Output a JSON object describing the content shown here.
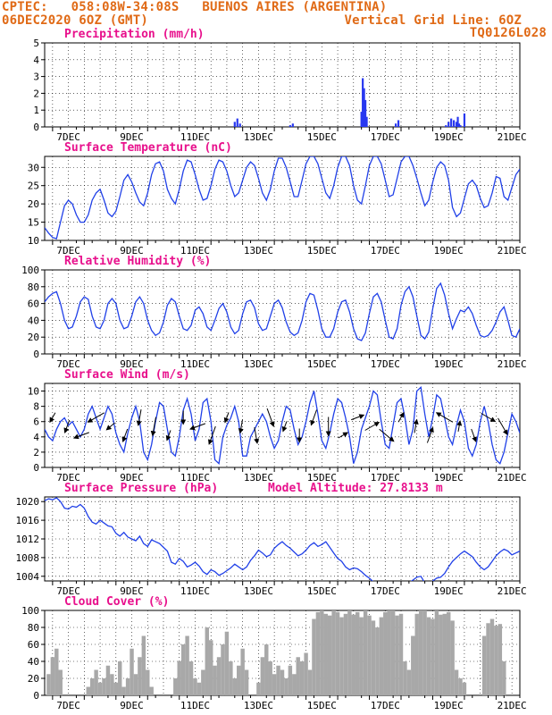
{
  "header": {
    "left1": "CPTEC:   058:08W-34:08S   BUENOS AIRES (ARGENTINA)",
    "left2": "06DEC2020 6OZ (GMT)",
    "right2": "Vertical Grid Line: 6OZ",
    "right3": "TQ0126L028"
  },
  "colors": {
    "title": "#e8108c",
    "series": "#2040e8",
    "bars": "#2838f0",
    "cloud": "#a8a8a8",
    "header": "#e06a16",
    "grid": "#000000"
  },
  "x_ticks": [
    "7DEC",
    "9DEC",
    "11DEC",
    "13DEC",
    "15DEC",
    "17DEC",
    "19DEC",
    "21DEC"
  ],
  "chart_data": [
    {
      "type": "bar",
      "title": "Precipitation (mm/h)",
      "ylim": [
        0,
        5
      ],
      "yticks": [
        "0",
        "1",
        "2",
        "3",
        "4",
        "5"
      ],
      "x_label_note": "hours since 06DEC2020 12Z",
      "x": [
        144,
        146,
        148,
        186,
        188,
        240,
        241,
        242,
        243,
        244,
        266,
        268,
        304,
        306,
        308,
        310,
        312,
        313,
        314,
        315,
        318
      ],
      "values": [
        0.3,
        0.5,
        0.2,
        0.1,
        0.2,
        0.9,
        2.9,
        2.3,
        1.6,
        0.6,
        0.2,
        0.4,
        0.1,
        0.3,
        0.5,
        0.4,
        0.3,
        0.6,
        0.2,
        0.1,
        0.8
      ]
    },
    {
      "type": "line",
      "title": "Surface Temperature (nC)",
      "ylim": [
        10,
        33
      ],
      "yticks": [
        "10",
        "15",
        "20",
        "25",
        "30"
      ],
      "x": [
        0,
        3,
        6,
        9,
        12,
        15,
        18,
        21,
        24,
        27,
        30,
        33,
        36,
        39,
        42,
        45,
        48,
        51,
        54,
        57,
        60,
        63,
        66,
        69,
        72,
        75,
        78,
        81,
        84,
        87,
        90,
        93,
        96,
        99,
        102,
        105,
        108,
        111,
        114,
        117,
        120,
        123,
        126,
        129,
        132,
        135,
        138,
        141,
        144,
        147,
        150,
        153,
        156,
        159,
        162,
        165,
        168,
        171,
        174,
        177,
        180,
        183,
        186,
        189,
        192,
        195,
        198,
        201,
        204,
        207,
        210,
        213,
        216,
        219,
        222,
        225,
        228,
        231,
        234,
        237,
        240,
        243,
        246,
        249,
        252,
        255,
        258,
        261,
        264,
        267,
        270,
        273,
        276,
        279,
        282,
        285,
        288,
        291,
        294,
        297,
        300,
        303,
        306,
        309,
        312,
        315,
        318,
        321,
        324,
        327,
        330,
        333,
        336,
        339,
        342,
        345,
        348,
        351,
        354,
        357,
        360
      ],
      "values": [
        13.5,
        12.0,
        10.8,
        10.5,
        15.0,
        19.5,
        21.0,
        20.0,
        17.0,
        15.0,
        15.0,
        17.0,
        21.0,
        23.0,
        24.0,
        21.0,
        17.5,
        16.5,
        18.0,
        22.0,
        26.5,
        28.0,
        26.0,
        23.0,
        20.5,
        19.5,
        23.0,
        28.0,
        31.0,
        31.5,
        29.0,
        24.0,
        21.5,
        20.0,
        24.0,
        29.0,
        32.0,
        31.5,
        28.0,
        24.0,
        21.0,
        21.5,
        25.0,
        29.5,
        32.0,
        31.5,
        29.0,
        25.0,
        22.0,
        23.0,
        26.5,
        30.0,
        31.5,
        30.5,
        27.0,
        23.0,
        21.0,
        24.0,
        29.0,
        32.5,
        32.5,
        30.0,
        26.0,
        22.0,
        22.0,
        26.5,
        31.0,
        33.0,
        33.0,
        31.0,
        27.0,
        23.0,
        21.5,
        25.0,
        30.0,
        33.0,
        33.0,
        30.5,
        25.0,
        21.0,
        20.0,
        25.0,
        30.5,
        33.0,
        33.0,
        31.0,
        26.5,
        22.0,
        22.5,
        27.0,
        31.5,
        33.0,
        33.0,
        30.5,
        27.0,
        23.0,
        19.5,
        21.0,
        26.0,
        30.0,
        31.5,
        30.5,
        26.5,
        19.0,
        16.5,
        17.5,
        21.5,
        25.5,
        26.5,
        25.0,
        21.5,
        19.0,
        19.5,
        23.0,
        27.5,
        27.0,
        22.0,
        21.0,
        24.5,
        28.0,
        29.5
      ]
    },
    {
      "type": "line",
      "title": "Relative Humidity (%)",
      "ylim": [
        0,
        100
      ],
      "yticks": [
        "0",
        "20",
        "40",
        "60",
        "80",
        "100"
      ],
      "x": [
        0,
        3,
        6,
        9,
        12,
        15,
        18,
        21,
        24,
        27,
        30,
        33,
        36,
        39,
        42,
        45,
        48,
        51,
        54,
        57,
        60,
        63,
        66,
        69,
        72,
        75,
        78,
        81,
        84,
        87,
        90,
        93,
        96,
        99,
        102,
        105,
        108,
        111,
        114,
        117,
        120,
        123,
        126,
        129,
        132,
        135,
        138,
        141,
        144,
        147,
        150,
        153,
        156,
        159,
        162,
        165,
        168,
        171,
        174,
        177,
        180,
        183,
        186,
        189,
        192,
        195,
        198,
        201,
        204,
        207,
        210,
        213,
        216,
        219,
        222,
        225,
        228,
        231,
        234,
        237,
        240,
        243,
        246,
        249,
        252,
        255,
        258,
        261,
        264,
        267,
        270,
        273,
        276,
        279,
        282,
        285,
        288,
        291,
        294,
        297,
        300,
        303,
        306,
        309,
        312,
        315,
        318,
        321,
        324,
        327,
        330,
        333,
        336,
        339,
        342,
        345,
        348,
        351,
        354,
        357,
        360
      ],
      "values": [
        62,
        68,
        72,
        74,
        60,
        40,
        30,
        32,
        45,
        62,
        68,
        65,
        45,
        32,
        30,
        40,
        60,
        66,
        60,
        40,
        30,
        32,
        45,
        62,
        68,
        60,
        40,
        28,
        22,
        25,
        38,
        58,
        66,
        62,
        45,
        30,
        28,
        34,
        52,
        56,
        48,
        32,
        28,
        40,
        54,
        60,
        50,
        32,
        24,
        28,
        48,
        62,
        64,
        55,
        36,
        28,
        30,
        45,
        60,
        64,
        55,
        38,
        26,
        22,
        25,
        40,
        62,
        72,
        70,
        52,
        30,
        20,
        20,
        30,
        50,
        62,
        64,
        50,
        30,
        18,
        16,
        25,
        48,
        68,
        72,
        62,
        40,
        20,
        18,
        30,
        58,
        74,
        80,
        68,
        45,
        22,
        18,
        26,
        54,
        78,
        84,
        70,
        48,
        30,
        42,
        52,
        50,
        56,
        48,
        34,
        22,
        20,
        22,
        28,
        38,
        50,
        56,
        40,
        22,
        20,
        30
      ]
    },
    {
      "type": "line",
      "title": "Surface Wind (m/s)",
      "ylim": [
        0,
        11
      ],
      "yticks": [
        "0",
        "2",
        "4",
        "6",
        "8",
        "10"
      ],
      "x": [
        0,
        3,
        6,
        9,
        12,
        15,
        18,
        21,
        24,
        27,
        30,
        33,
        36,
        39,
        42,
        45,
        48,
        51,
        54,
        57,
        60,
        63,
        66,
        69,
        72,
        75,
        78,
        81,
        84,
        87,
        90,
        93,
        96,
        99,
        102,
        105,
        108,
        111,
        114,
        117,
        120,
        123,
        126,
        129,
        132,
        135,
        138,
        141,
        144,
        147,
        150,
        153,
        156,
        159,
        162,
        165,
        168,
        171,
        174,
        177,
        180,
        183,
        186,
        189,
        192,
        195,
        198,
        201,
        204,
        207,
        210,
        213,
        216,
        219,
        222,
        225,
        228,
        231,
        234,
        237,
        240,
        243,
        246,
        249,
        252,
        255,
        258,
        261,
        264,
        267,
        270,
        273,
        276,
        279,
        282,
        285,
        288,
        291,
        294,
        297,
        300,
        303,
        306,
        309,
        312,
        315,
        318,
        321,
        324,
        327,
        330,
        333,
        336,
        339,
        342,
        345,
        348,
        351,
        354,
        357,
        360
      ],
      "values": [
        5.0,
        4.0,
        3.5,
        5.0,
        6.0,
        6.5,
        5.5,
        6.0,
        5.0,
        4.0,
        5.0,
        7.0,
        8.0,
        6.5,
        5.0,
        6.5,
        8.0,
        7.0,
        4.5,
        3.0,
        2.0,
        4.5,
        6.5,
        8.0,
        6.0,
        2.0,
        1.0,
        3.0,
        6.0,
        8.5,
        8.0,
        5.0,
        2.0,
        1.5,
        4.0,
        7.5,
        9.0,
        7.0,
        3.5,
        5.0,
        8.5,
        9.0,
        6.0,
        1.0,
        0.5,
        4.0,
        5.5,
        6.5,
        8.0,
        6.0,
        1.5,
        1.5,
        4.0,
        5.0,
        6.0,
        7.0,
        6.0,
        4.0,
        2.5,
        3.5,
        6.0,
        8.0,
        7.5,
        5.0,
        3.0,
        4.0,
        6.0,
        8.5,
        10.0,
        7.0,
        3.5,
        2.5,
        4.5,
        7.0,
        9.0,
        8.5,
        6.5,
        4.0,
        0.5,
        2.0,
        5.0,
        6.5,
        8.0,
        10.0,
        9.5,
        6.0,
        3.0,
        2.5,
        5.5,
        8.5,
        9.0,
        6.5,
        3.0,
        5.0,
        10.0,
        10.5,
        7.0,
        4.0,
        6.5,
        9.5,
        9.0,
        6.5,
        4.0,
        3.0,
        5.5,
        7.5,
        6.0,
        2.5,
        1.5,
        3.0,
        6.0,
        8.0,
        6.0,
        3.0,
        1.0,
        0.5,
        2.0,
        4.5,
        7.0,
        6.0,
        4.5
      ]
    },
    {
      "type": "line",
      "title": "Surface Pressure (hPa)",
      "annotation": "Model Altitude: 27.8133 m",
      "ylim": [
        1003,
        1021
      ],
      "yticks": [
        "1004",
        "1008",
        "1012",
        "1016",
        "1020"
      ],
      "x": [
        0,
        3,
        6,
        9,
        12,
        15,
        18,
        21,
        24,
        27,
        30,
        33,
        36,
        39,
        42,
        45,
        48,
        51,
        54,
        57,
        60,
        63,
        66,
        69,
        72,
        75,
        78,
        81,
        84,
        87,
        90,
        93,
        96,
        99,
        102,
        105,
        108,
        111,
        114,
        117,
        120,
        123,
        126,
        129,
        132,
        135,
        138,
        141,
        144,
        147,
        150,
        153,
        156,
        159,
        162,
        165,
        168,
        171,
        174,
        177,
        180,
        183,
        186,
        189,
        192,
        195,
        198,
        201,
        204,
        207,
        210,
        213,
        216,
        219,
        222,
        225,
        228,
        231,
        234,
        237,
        240,
        243,
        246,
        249,
        252,
        255,
        258,
        261,
        264,
        267,
        270,
        273,
        276,
        279,
        282,
        285,
        288,
        291,
        294,
        297,
        300,
        303,
        306,
        309,
        312,
        315,
        318,
        321,
        324,
        327,
        330,
        333,
        336,
        339,
        342,
        345,
        348,
        351,
        354,
        357,
        360
      ],
      "values": [
        1020.2,
        1020.6,
        1020.4,
        1020.8,
        1020.0,
        1018.6,
        1018.4,
        1019.0,
        1018.8,
        1019.4,
        1018.6,
        1016.8,
        1015.6,
        1015.2,
        1016.0,
        1015.4,
        1014.8,
        1014.6,
        1013.2,
        1012.6,
        1013.4,
        1012.4,
        1012.0,
        1011.6,
        1012.6,
        1011.0,
        1010.4,
        1011.8,
        1011.4,
        1011.0,
        1010.2,
        1009.4,
        1007.0,
        1006.6,
        1007.8,
        1007.2,
        1006.0,
        1006.4,
        1007.0,
        1006.2,
        1005.0,
        1004.4,
        1005.4,
        1005.0,
        1004.2,
        1004.6,
        1005.2,
        1005.8,
        1006.6,
        1006.0,
        1005.4,
        1006.0,
        1007.4,
        1008.4,
        1009.6,
        1009.0,
        1008.2,
        1008.6,
        1010.0,
        1010.8,
        1011.4,
        1010.6,
        1010.0,
        1009.2,
        1008.4,
        1008.8,
        1009.6,
        1010.6,
        1011.2,
        1010.4,
        1010.8,
        1011.4,
        1010.2,
        1009.0,
        1007.8,
        1007.2,
        1006.0,
        1005.4,
        1005.8,
        1005.6,
        1005.0,
        1004.2,
        1003.6,
        1002.8,
        1002.4,
        1002.0,
        1001.8,
        1001.6,
        1001.4,
        1001.6,
        1001.8,
        1002.2,
        1002.6,
        1003.2,
        1003.8,
        1004.0,
        1002.6,
        1002.2,
        1003.0,
        1003.6,
        1003.8,
        1004.6,
        1006.0,
        1007.2,
        1008.0,
        1008.8,
        1009.4,
        1008.8,
        1008.2,
        1007.0,
        1006.0,
        1005.4,
        1006.0,
        1007.2,
        1008.4,
        1009.2,
        1009.8,
        1009.4,
        1008.6,
        1009.0,
        1009.4
      ]
    },
    {
      "type": "bar",
      "title": "Cloud Cover (%)",
      "ylim": [
        0,
        100
      ],
      "yticks": [
        "0",
        "20",
        "40",
        "60",
        "80",
        "100"
      ],
      "x": [
        3,
        6,
        9,
        12,
        33,
        36,
        39,
        42,
        45,
        48,
        51,
        54,
        57,
        60,
        63,
        66,
        69,
        72,
        75,
        78,
        81,
        99,
        102,
        105,
        108,
        111,
        114,
        117,
        120,
        123,
        126,
        129,
        132,
        135,
        138,
        141,
        144,
        147,
        150,
        153,
        162,
        165,
        168,
        171,
        174,
        177,
        180,
        183,
        186,
        189,
        192,
        195,
        198,
        201,
        204,
        207,
        210,
        213,
        216,
        219,
        222,
        225,
        228,
        231,
        234,
        237,
        240,
        243,
        246,
        249,
        252,
        255,
        258,
        261,
        264,
        267,
        270,
        273,
        276,
        279,
        282,
        285,
        288,
        291,
        294,
        297,
        300,
        303,
        306,
        309,
        312,
        315,
        318,
        333,
        336,
        339,
        342,
        345,
        348
      ],
      "values": [
        25,
        45,
        55,
        30,
        10,
        20,
        30,
        15,
        20,
        35,
        25,
        15,
        40,
        10,
        20,
        55,
        25,
        45,
        70,
        30,
        10,
        20,
        40,
        60,
        70,
        40,
        20,
        15,
        30,
        80,
        65,
        35,
        45,
        60,
        75,
        40,
        20,
        35,
        55,
        30,
        15,
        45,
        60,
        40,
        25,
        35,
        30,
        20,
        35,
        25,
        45,
        40,
        50,
        30,
        90,
        98,
        100,
        96,
        94,
        100,
        98,
        92,
        96,
        100,
        95,
        98,
        92,
        100,
        94,
        88,
        80,
        92,
        98,
        100,
        100,
        94,
        96,
        40,
        30,
        70,
        96,
        100,
        100,
        92,
        90,
        100,
        95,
        96,
        98,
        88,
        30,
        20,
        15,
        70,
        85,
        90,
        82,
        84,
        40
      ]
    }
  ]
}
